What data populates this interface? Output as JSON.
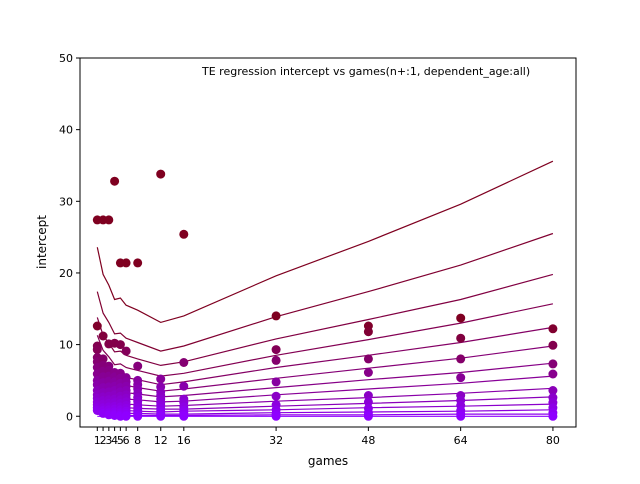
{
  "chart_data": {
    "type": "line",
    "title": "TE regression intercept vs games(n+:1, dependent_age:all)",
    "xlabel": "games",
    "ylabel": "intercept",
    "xlim": [
      -2,
      84
    ],
    "ylim": [
      -1.5,
      50
    ],
    "xticks": [
      1,
      2,
      3,
      4,
      5,
      6,
      8,
      12,
      16,
      32,
      48,
      64,
      80
    ],
    "yticks": [
      0,
      10,
      20,
      30,
      40,
      50
    ],
    "grid": false,
    "legend": "none",
    "color_start": "#7f0020",
    "color_end": "#8f00ff",
    "x": [
      1,
      2,
      3,
      4,
      5,
      6,
      8,
      12,
      16,
      32,
      48,
      64,
      80
    ],
    "series": [
      {
        "values": [
          23.6,
          19.8,
          18.3,
          16.3,
          16.5,
          15.5,
          14.8,
          13.1,
          14.0,
          19.6,
          24.4,
          29.6,
          35.6
        ]
      },
      {
        "values": [
          17.4,
          14.4,
          13.1,
          11.5,
          11.6,
          10.9,
          10.3,
          9.1,
          9.8,
          13.9,
          17.4,
          21.1,
          25.5
        ]
      },
      {
        "values": [
          13.8,
          11.3,
          10.2,
          9.0,
          9.1,
          8.5,
          8.0,
          7.1,
          7.6,
          10.8,
          13.5,
          16.3,
          19.8
        ]
      },
      {
        "values": [
          11.3,
          9.2,
          8.3,
          7.2,
          7.3,
          6.8,
          6.4,
          5.6,
          6.0,
          8.5,
          10.7,
          13.0,
          15.7
        ]
      },
      {
        "values": [
          9.0,
          7.3,
          6.6,
          5.8,
          5.8,
          5.4,
          5.1,
          4.4,
          4.8,
          6.8,
          8.5,
          10.3,
          12.4
        ]
      },
      {
        "values": [
          7.2,
          5.8,
          5.2,
          4.5,
          4.6,
          4.3,
          4.0,
          3.5,
          3.8,
          5.3,
          6.7,
          8.1,
          9.8
        ]
      },
      {
        "values": [
          5.5,
          4.5,
          4.0,
          3.5,
          3.5,
          3.3,
          3.1,
          2.7,
          2.9,
          4.0,
          5.1,
          6.1,
          7.4
        ]
      },
      {
        "values": [
          4.2,
          3.4,
          3.0,
          2.6,
          2.6,
          2.4,
          2.3,
          2.0,
          2.1,
          3.0,
          3.8,
          4.6,
          5.6
        ]
      },
      {
        "values": [
          3.0,
          2.4,
          2.1,
          1.8,
          1.8,
          1.7,
          1.6,
          1.4,
          1.5,
          2.1,
          2.6,
          3.2,
          3.9
        ]
      },
      {
        "values": [
          2.1,
          1.7,
          1.5,
          1.3,
          1.3,
          1.2,
          1.1,
          1.0,
          1.0,
          1.4,
          1.8,
          2.2,
          2.7
        ]
      },
      {
        "values": [
          1.4,
          1.1,
          1.0,
          0.8,
          0.8,
          0.8,
          0.7,
          0.6,
          0.7,
          0.9,
          1.2,
          1.4,
          1.7
        ]
      },
      {
        "values": [
          0.8,
          0.6,
          0.5,
          0.4,
          0.4,
          0.4,
          0.4,
          0.3,
          0.3,
          0.5,
          0.6,
          0.7,
          0.9
        ]
      },
      {
        "values": [
          0.3,
          0.2,
          0.2,
          0.1,
          0.1,
          0.1,
          0.1,
          0.1,
          0.1,
          0.2,
          0.2,
          0.3,
          0.3
        ]
      },
      {
        "values": [
          0.0,
          0.0,
          0.0,
          0.0,
          0.0,
          0.0,
          0.0,
          0.0,
          0.0,
          0.0,
          0.0,
          0.0,
          0.0
        ]
      }
    ],
    "points": [
      {
        "x": 1,
        "ys": [
          27.4,
          12.6,
          9.8,
          9.3,
          8.2,
          7.6,
          6.8,
          5.9,
          5.0,
          4.4,
          3.6,
          3.0,
          2.5,
          2.0,
          1.6,
          1.2,
          0.8
        ]
      },
      {
        "x": 2,
        "ys": [
          27.4,
          11.2,
          8.0,
          7.1,
          6.3,
          5.5,
          4.7,
          4.0,
          3.3,
          2.7,
          2.2,
          1.7,
          1.2,
          0.8,
          0.4
        ]
      },
      {
        "x": 3,
        "ys": [
          27.4,
          10.1,
          7.0,
          6.4,
          5.6,
          4.9,
          4.1,
          3.4,
          2.8,
          2.3,
          1.8,
          1.3,
          0.9,
          0.5,
          0.2
        ]
      },
      {
        "x": 4,
        "ys": [
          32.8,
          10.2,
          6.1,
          5.5,
          4.8,
          4.2,
          3.6,
          3.0,
          2.4,
          1.9,
          1.4,
          1.0,
          0.6,
          0.3,
          0.1
        ]
      },
      {
        "x": 5,
        "ys": [
          21.4,
          10.0,
          6.0,
          5.3,
          4.6,
          4.0,
          3.4,
          2.8,
          2.3,
          1.8,
          1.3,
          0.9,
          0.5,
          0.2,
          0.0
        ]
      },
      {
        "x": 6,
        "ys": [
          21.4,
          9.1,
          5.4,
          4.8,
          4.2,
          3.6,
          3.0,
          2.5,
          2.0,
          1.5,
          1.1,
          0.7,
          0.4,
          0.1,
          0.0
        ]
      },
      {
        "x": 8,
        "ys": [
          21.4,
          7.0,
          5.0,
          4.4,
          3.8,
          3.2,
          2.6,
          2.1,
          1.6,
          1.2,
          0.8,
          0.5,
          0.2,
          0.0
        ]
      },
      {
        "x": 12,
        "ys": [
          33.8,
          5.2,
          4.1,
          3.4,
          2.9,
          2.4,
          1.9,
          1.5,
          1.1,
          0.7,
          0.4,
          0.2,
          0.0
        ]
      },
      {
        "x": 16,
        "ys": [
          25.4,
          7.5,
          4.2,
          2.4,
          1.9,
          1.3,
          0.8,
          0.5,
          0.2,
          0.0
        ]
      },
      {
        "x": 32,
        "ys": [
          14.0,
          9.3,
          7.8,
          4.8,
          2.8,
          1.6,
          0.9,
          0.4,
          0.1,
          0.0
        ]
      },
      {
        "x": 48,
        "ys": [
          12.6,
          11.8,
          8.0,
          6.1,
          2.9,
          2.0,
          1.1,
          0.5,
          0.1,
          0.0
        ]
      },
      {
        "x": 64,
        "ys": [
          13.7,
          10.9,
          8.0,
          5.4,
          2.9,
          2.2,
          1.5,
          0.8,
          0.3,
          0.0
        ]
      },
      {
        "x": 80,
        "ys": [
          12.2,
          9.9,
          7.3,
          5.9,
          3.6,
          2.6,
          1.9,
          1.2,
          0.5,
          0.0
        ]
      }
    ]
  }
}
